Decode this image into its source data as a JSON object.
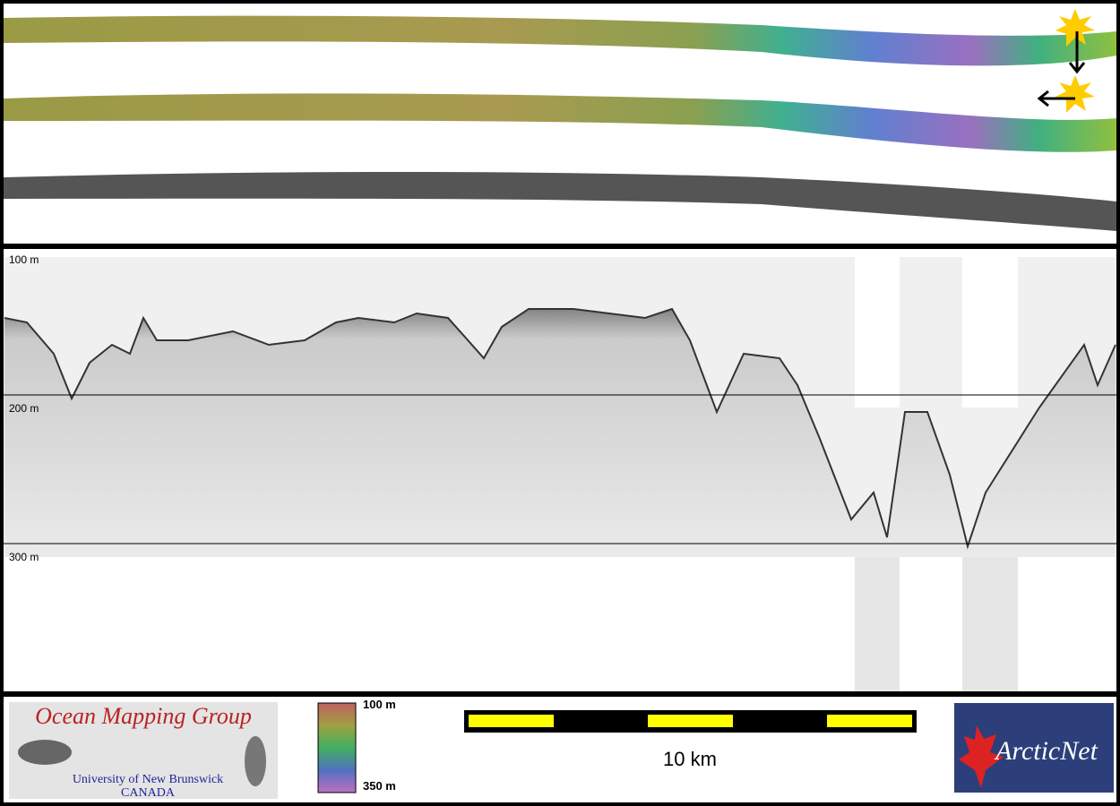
{
  "profile": {
    "depth_labels": [
      "100 m",
      "200 m",
      "300 m"
    ]
  },
  "color_legend": {
    "top_label": "100 m",
    "bottom_label": "350 m"
  },
  "scale_bar": {
    "label": "10 km"
  },
  "logo_left": {
    "title": "Ocean Mapping Group",
    "line1": "University of New Brunswick",
    "line2": "CANADA"
  },
  "logo_right": {
    "title": "ArcticNet"
  }
}
